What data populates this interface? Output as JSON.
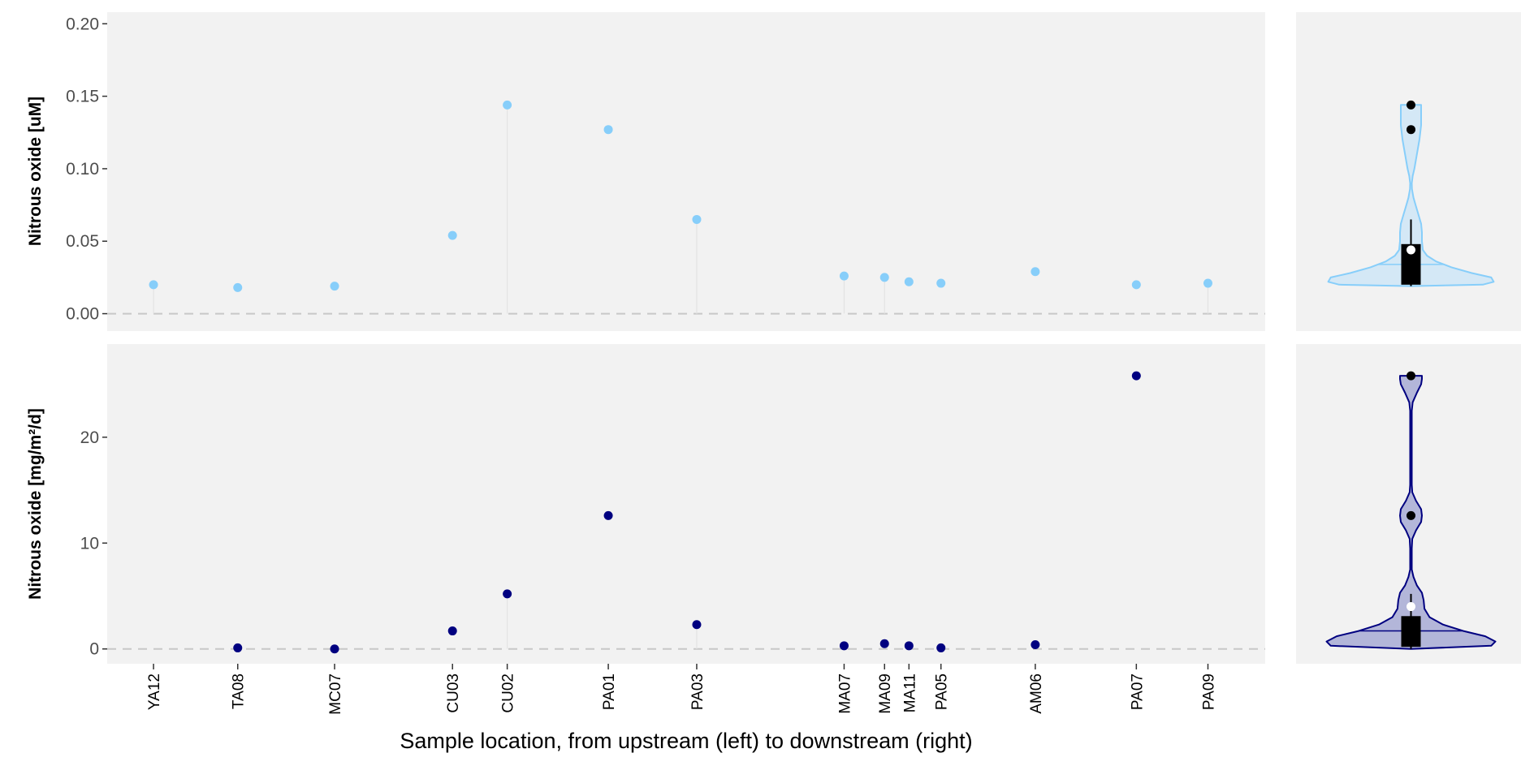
{
  "chart_data": [
    {
      "type": "scatter",
      "subtype": "lollipop",
      "panel": "top-left",
      "ylabel": "Nitrous oxide [uM]",
      "xlabel": "",
      "ylim": [
        -0.012,
        0.208
      ],
      "yticks": [
        0.0,
        0.05,
        0.1,
        0.15,
        0.2
      ],
      "ytick_labels": [
        "0.00",
        "0.05",
        "0.10",
        "0.15",
        "0.20"
      ],
      "reference_line": {
        "y": 0,
        "style": "dashed"
      },
      "point_color": "#87CEFA",
      "stem_color": "#e3e3e3",
      "categories": [
        "YA12",
        "TA08",
        "MC07",
        "CU03",
        "CU02",
        "PA01",
        "PA03",
        "MA07",
        "MA09",
        "MA11",
        "PA05",
        "AM06",
        "PA07",
        "PA09"
      ],
      "x_positions": [
        1.0,
        2.0,
        3.15,
        4.55,
        5.2,
        6.4,
        7.45,
        9.2,
        9.68,
        9.97,
        10.35,
        11.47,
        12.67,
        13.52
      ],
      "values": [
        0.02,
        0.018,
        0.019,
        0.054,
        0.144,
        0.127,
        0.065,
        0.026,
        0.025,
        0.022,
        0.021,
        0.029,
        0.02,
        0.021
      ],
      "stems": [
        true,
        false,
        false,
        false,
        true,
        false,
        true,
        true,
        true,
        false,
        false,
        false,
        false,
        true
      ],
      "grid": false
    },
    {
      "type": "scatter",
      "subtype": "lollipop",
      "panel": "bottom-left",
      "ylabel": "Nitrous oxide [mg/m²/d]",
      "xlabel": "Sample location, from upstream (left) to downstream (right)",
      "ylim": [
        -1.4,
        28.8
      ],
      "yticks": [
        0,
        10,
        20
      ],
      "ytick_labels": [
        "0",
        "10",
        "20"
      ],
      "reference_line": {
        "y": 0,
        "style": "dashed"
      },
      "point_color": "#000080",
      "stem_color": "#e3e3e3",
      "categories": [
        "YA12",
        "TA08",
        "MC07",
        "CU03",
        "CU02",
        "PA01",
        "PA03",
        "MA07",
        "MA09",
        "MA11",
        "PA05",
        "AM06",
        "PA07",
        "PA09"
      ],
      "x_positions": [
        1.0,
        2.0,
        3.15,
        4.55,
        5.2,
        6.4,
        7.45,
        9.2,
        9.68,
        9.97,
        10.35,
        11.47,
        12.67,
        13.52
      ],
      "values": [
        null,
        0.1,
        0.0,
        1.7,
        5.2,
        12.6,
        2.3,
        0.3,
        0.5,
        0.3,
        0.1,
        0.4,
        25.8,
        null
      ],
      "stems": [
        false,
        false,
        false,
        false,
        true,
        false,
        true,
        false,
        false,
        false,
        false,
        false,
        false,
        false
      ],
      "grid": false
    },
    {
      "type": "violin",
      "panel": "top-right",
      "ylim": [
        -0.012,
        0.208
      ],
      "fill_color": "#d4e8f6",
      "line_color": "#87CEFA",
      "box": {
        "q1": 0.02,
        "median": 0.034,
        "q3": 0.048,
        "whisker_low": 0.019,
        "whisker_high": 0.065,
        "mean": 0.044
      },
      "outliers": [
        0.144,
        0.127
      ],
      "density_profile": [
        [
          0.019,
          0.0
        ],
        [
          0.02,
          0.85
        ],
        [
          0.022,
          0.98
        ],
        [
          0.025,
          0.95
        ],
        [
          0.028,
          0.72
        ],
        [
          0.032,
          0.48
        ],
        [
          0.036,
          0.3
        ],
        [
          0.04,
          0.19
        ],
        [
          0.044,
          0.14
        ],
        [
          0.05,
          0.13
        ],
        [
          0.056,
          0.13
        ],
        [
          0.062,
          0.12
        ],
        [
          0.068,
          0.09
        ],
        [
          0.074,
          0.06
        ],
        [
          0.08,
          0.03
        ],
        [
          0.086,
          0.012
        ],
        [
          0.09,
          0.01
        ],
        [
          0.095,
          0.02
        ],
        [
          0.1,
          0.04
        ],
        [
          0.11,
          0.07
        ],
        [
          0.12,
          0.1
        ],
        [
          0.13,
          0.12
        ],
        [
          0.138,
          0.12
        ],
        [
          0.142,
          0.12
        ],
        [
          0.144,
          0.12
        ]
      ]
    },
    {
      "type": "violin",
      "panel": "bottom-right",
      "ylim": [
        -1.4,
        28.8
      ],
      "fill_color": "#b3b6d9",
      "line_color": "#000080",
      "box": {
        "q1": 0.2,
        "median": 1.7,
        "q3": 3.1,
        "whisker_low": 0.0,
        "whisker_high": 5.2,
        "mean": 4.0
      },
      "outliers": [
        25.8,
        12.6
      ],
      "density_profile": [
        [
          0.0,
          0.0
        ],
        [
          0.3,
          0.95
        ],
        [
          0.7,
          1.0
        ],
        [
          1.2,
          0.88
        ],
        [
          1.7,
          0.62
        ],
        [
          2.3,
          0.38
        ],
        [
          3.0,
          0.22
        ],
        [
          3.8,
          0.16
        ],
        [
          4.6,
          0.15
        ],
        [
          5.3,
          0.13
        ],
        [
          6.0,
          0.07
        ],
        [
          6.8,
          0.03
        ],
        [
          7.5,
          0.01
        ],
        [
          8.5,
          0.01
        ],
        [
          9.5,
          0.01
        ],
        [
          10.4,
          0.015
        ],
        [
          11.2,
          0.06
        ],
        [
          12.0,
          0.12
        ],
        [
          12.6,
          0.13
        ],
        [
          13.2,
          0.12
        ],
        [
          14.0,
          0.06
        ],
        [
          14.8,
          0.015
        ],
        [
          15.5,
          0.01
        ],
        [
          22.5,
          0.01
        ],
        [
          23.3,
          0.02
        ],
        [
          24.2,
          0.07
        ],
        [
          25.0,
          0.12
        ],
        [
          25.5,
          0.13
        ],
        [
          25.8,
          0.13
        ]
      ]
    }
  ]
}
